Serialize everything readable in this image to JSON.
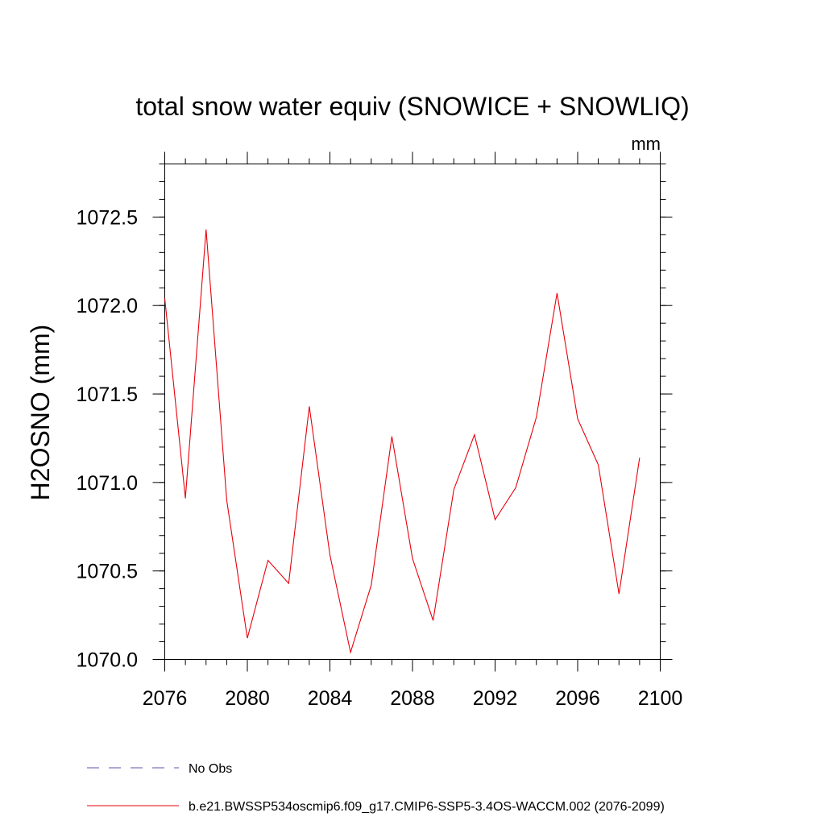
{
  "chart_data": {
    "type": "line",
    "title": "total snow water equiv (SNOWICE + SNOWLIQ)",
    "units": "mm",
    "ylabel": "H2OSNO  (mm)",
    "xlabel": "",
    "xlim": [
      2076,
      2100
    ],
    "ylim": [
      1070.0,
      1072.8
    ],
    "xticks": [
      2076,
      2080,
      2084,
      2088,
      2092,
      2096,
      2100
    ],
    "xtick_labels": [
      "2076",
      "2080",
      "2084",
      "2088",
      "2092",
      "2096",
      "2100"
    ],
    "yticks": [
      1070.0,
      1070.5,
      1071.0,
      1071.5,
      1072.0,
      1072.5
    ],
    "ytick_labels": [
      "1070.0",
      "1070.5",
      "1071.0",
      "1071.5",
      "1072.0",
      "1072.5"
    ],
    "series": [
      {
        "name": "b.e21.BWSSP534oscmip6.f09_g17.CMIP6-SSP5-3.4OS-WACCM.002 (2076-2099)",
        "color": "#e8000b",
        "style": "solid",
        "x": [
          2076,
          2077,
          2078,
          2079,
          2080,
          2081,
          2082,
          2083,
          2084,
          2085,
          2086,
          2087,
          2088,
          2089,
          2090,
          2091,
          2092,
          2093,
          2094,
          2095,
          2096,
          2097,
          2098,
          2099
        ],
        "values": [
          1072.04,
          1070.91,
          1072.43,
          1070.9,
          1070.12,
          1070.56,
          1070.43,
          1071.43,
          1070.59,
          1070.04,
          1070.42,
          1071.26,
          1070.57,
          1070.22,
          1070.96,
          1071.27,
          1070.79,
          1070.97,
          1071.37,
          1072.07,
          1071.36,
          1071.1,
          1070.37,
          1071.14
        ]
      }
    ],
    "legend": [
      {
        "label": "No Obs",
        "color": "#5b55a8",
        "style": "dashed"
      },
      {
        "label": "b.e21.BWSSP534oscmip6.f09_g17.CMIP6-SSP5-3.4OS-WACCM.002 (2076-2099)",
        "color": "#e8000b",
        "style": "solid"
      }
    ],
    "legend_position": "bottom-left"
  }
}
